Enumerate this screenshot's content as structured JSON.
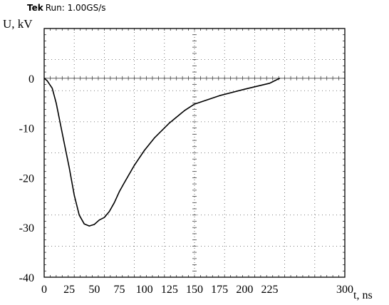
{
  "header": {
    "brand": "Tek",
    "status": "Run: 1.00GS/s"
  },
  "chart_data": {
    "type": "line",
    "title": "",
    "xlabel": "t, ns",
    "ylabel": "U, kV",
    "xlim": [
      0,
      300
    ],
    "ylim": [
      -40,
      10
    ],
    "xticks": [
      0,
      25,
      50,
      75,
      100,
      125,
      150,
      175,
      200,
      225,
      300
    ],
    "xtick_labels": [
      "0",
      "25",
      "50",
      "75",
      "100",
      "125",
      "150",
      "175",
      "200",
      "225",
      "300"
    ],
    "yticks": [
      0,
      -10,
      -20,
      -30,
      -40
    ],
    "ytick_labels": [
      "0",
      "-10",
      "-20",
      "-30",
      "-40"
    ],
    "grid": true,
    "series": [
      {
        "x": [
          0,
          3,
          8,
          12,
          16,
          20,
          25,
          30,
          35,
          40,
          45,
          50,
          55,
          60,
          65,
          70,
          75,
          80,
          90,
          100,
          110,
          125,
          140,
          150,
          175,
          200,
          225,
          235
        ],
        "y": [
          0,
          -0.5,
          -2,
          -5,
          -9,
          -13,
          -18,
          -23.5,
          -27.5,
          -29.3,
          -29.7,
          -29.4,
          -28.5,
          -28,
          -26.8,
          -25,
          -22.8,
          -21,
          -17.5,
          -14.5,
          -12,
          -9,
          -6.5,
          -5.2,
          -3.5,
          -2.2,
          -1,
          0
        ]
      }
    ]
  }
}
